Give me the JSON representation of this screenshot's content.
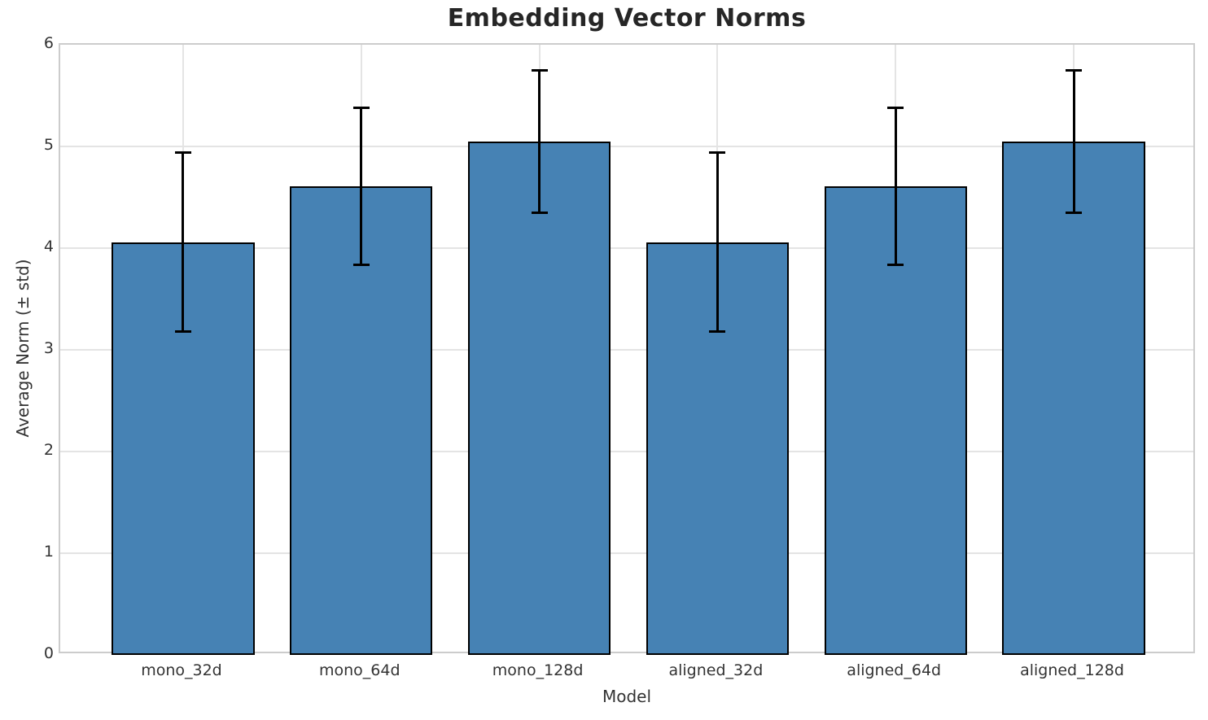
{
  "chart_data": {
    "type": "bar",
    "title": "Embedding Vector Norms",
    "xlabel": "Model",
    "ylabel": "Average Norm (± std)",
    "categories": [
      "mono_32d",
      "mono_64d",
      "mono_128d",
      "aligned_32d",
      "aligned_64d",
      "aligned_128d"
    ],
    "values": [
      4.06,
      4.61,
      5.05,
      4.06,
      4.61,
      5.05
    ],
    "errors": [
      0.88,
      0.77,
      0.7,
      0.88,
      0.77,
      0.7
    ],
    "ylim": [
      0,
      6
    ],
    "yticks": [
      0,
      1,
      2,
      3,
      4,
      5,
      6
    ],
    "grid": true,
    "legend": "none",
    "bar_color": "#4682B4",
    "bar_edge_color": "#000000",
    "error_color": "#000000",
    "grid_color": "#e4e4e4",
    "spine_color": "#cccccc",
    "text_color": "#333333",
    "title_color": "#262626"
  }
}
